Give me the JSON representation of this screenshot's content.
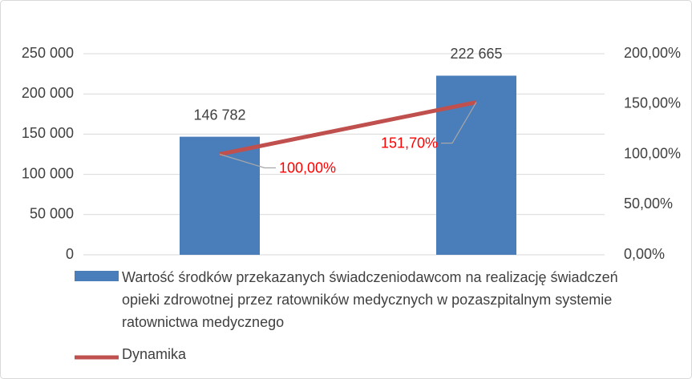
{
  "chart_data": {
    "type": "bar_line",
    "categories": [
      null,
      null
    ],
    "series": [
      {
        "name": "Wartość środków przekazanych świadczeniodawcom na realizację świadczeń opieki zdrowotnej przez ratowników medycznych w pozaszpitalnym systemie ratownictwa medycznego",
        "type": "bar",
        "color": "#4a7ebb",
        "values": [
          146782,
          222665
        ],
        "value_labels": [
          "146 782",
          "222 665"
        ]
      },
      {
        "name": "Dynamika",
        "type": "line",
        "axis": "y2",
        "color": "#c0504d",
        "values": [
          100,
          151.7
        ],
        "value_labels": [
          "100,00%",
          "151,70%"
        ],
        "label_color": "#ff0000"
      }
    ],
    "ylim": [
      0,
      250000
    ],
    "yticks": [
      0,
      {
        "value": 50000,
        "label": "50 000"
      },
      {
        "value": 100000,
        "label": "100 000"
      },
      {
        "value": 150000,
        "label": "150 000"
      },
      {
        "value": 200000,
        "label": "200 000"
      },
      {
        "value": 250000,
        "label": "250 000"
      }
    ],
    "y2lim": [
      0,
      200
    ],
    "y2ticks": [
      {
        "value": 0,
        "label": "0,00%"
      },
      {
        "value": 50,
        "label": "50,00%"
      },
      {
        "value": 100,
        "label": "100,00%"
      },
      {
        "value": 150,
        "label": "150,00%"
      },
      {
        "value": 200,
        "label": "200,00%"
      }
    ],
    "grid": true
  }
}
